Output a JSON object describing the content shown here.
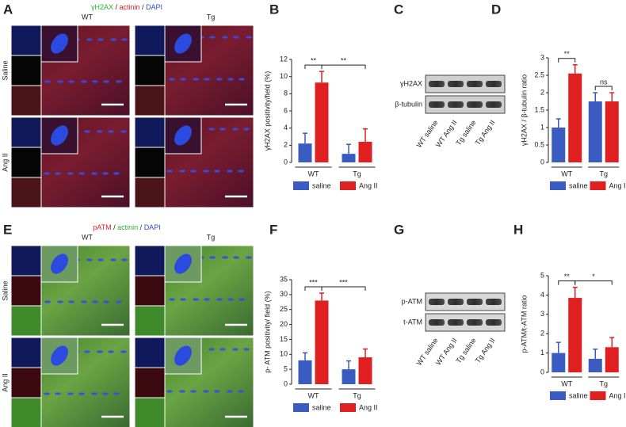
{
  "figure": {
    "panel_letters": [
      "A",
      "B",
      "C",
      "D",
      "E",
      "F",
      "G",
      "H"
    ],
    "micrographs": [
      {
        "stains": [
          {
            "text": "γH2AX",
            "color": "#2cb02c"
          },
          {
            "text": " / ",
            "color": "#222222"
          },
          {
            "text": "actinin",
            "color": "#e02020"
          },
          {
            "text": " / ",
            "color": "#222222"
          },
          {
            "text": "DAPI",
            "color": "#2a50d0"
          }
        ],
        "columns": [
          "WT",
          "Tg"
        ],
        "rows": [
          "Saline",
          "Ang II"
        ]
      },
      {
        "stains": [
          {
            "text": "pATM",
            "color": "#e02020"
          },
          {
            "text": " / ",
            "color": "#222222"
          },
          {
            "text": "actinin",
            "color": "#2cb02c"
          },
          {
            "text": " / ",
            "color": "#222222"
          },
          {
            "text": "DAPI",
            "color": "#2a50d0"
          }
        ],
        "columns": [
          "WT",
          "Tg"
        ],
        "rows": [
          "Saline",
          "Ang II"
        ]
      }
    ],
    "blots": [
      {
        "bands": [
          "γH2AX",
          "β-tubulin"
        ],
        "lanes": [
          "WT saline",
          "WT Ang II",
          "Tg saline",
          "Tg Ang II"
        ]
      },
      {
        "bands": [
          "p-ATM",
          "t-ATM"
        ],
        "lanes": [
          "WT saline",
          "WT Ang II",
          "Tg saline",
          "Tg Ang II"
        ]
      }
    ]
  },
  "chart_data": [
    {
      "type": "bar",
      "ylabel": "γH2AX positivity/field (%)",
      "categories": [
        "WT",
        "Tg"
      ],
      "series": [
        {
          "name": "saline",
          "color": "#3a5bbf",
          "values": [
            2.2,
            1.0
          ],
          "errors": [
            1.2,
            1.1
          ]
        },
        {
          "name": "Ang II",
          "color": "#e02020",
          "values": [
            9.3,
            2.4
          ],
          "errors": [
            1.3,
            1.5
          ]
        }
      ],
      "ylim": [
        0,
        12
      ],
      "yticks": [
        0,
        2,
        4,
        6,
        8,
        10,
        12
      ],
      "annotations": [
        "**",
        "**"
      ]
    },
    {
      "type": "bar",
      "ylabel": "γH2AX / β-tubulin ratio",
      "categories": [
        "WT",
        "Tg"
      ],
      "series": [
        {
          "name": "saline",
          "color": "#3a5bbf",
          "values": [
            1.0,
            1.75
          ],
          "errors": [
            0.25,
            0.25
          ]
        },
        {
          "name": "Ang II",
          "color": "#e02020",
          "values": [
            2.55,
            1.75
          ],
          "errors": [
            0.25,
            0.25
          ]
        }
      ],
      "ylim": [
        0,
        3
      ],
      "yticks": [
        0,
        0.5,
        1,
        1.5,
        2,
        2.5,
        3
      ],
      "annotations": [
        "**",
        "ns"
      ]
    },
    {
      "type": "bar",
      "ylabel": "p- ATM positivity/ field (%)",
      "categories": [
        "WT",
        "Tg"
      ],
      "series": [
        {
          "name": "saline",
          "color": "#3a5bbf",
          "values": [
            8,
            5
          ],
          "errors": [
            2.5,
            2.8
          ]
        },
        {
          "name": "Ang II",
          "color": "#e02020",
          "values": [
            28,
            9
          ],
          "errors": [
            2.5,
            2.8
          ]
        }
      ],
      "ylim": [
        0,
        35
      ],
      "yticks": [
        0,
        5,
        10,
        15,
        20,
        25,
        30,
        35
      ],
      "annotations": [
        "***",
        "***"
      ]
    },
    {
      "type": "bar",
      "ylabel": "p-ATM/t-ATM ratio",
      "categories": [
        "WT",
        "Tg"
      ],
      "series": [
        {
          "name": "saline",
          "color": "#3a5bbf",
          "values": [
            1.0,
            0.7
          ],
          "errors": [
            0.55,
            0.5
          ]
        },
        {
          "name": "Ang II",
          "color": "#e02020",
          "values": [
            3.85,
            1.3
          ],
          "errors": [
            0.55,
            0.5
          ]
        }
      ],
      "ylim": [
        0,
        5
      ],
      "yticks": [
        0,
        1,
        2,
        3,
        4,
        5
      ],
      "annotations": [
        "**",
        "*"
      ]
    }
  ]
}
